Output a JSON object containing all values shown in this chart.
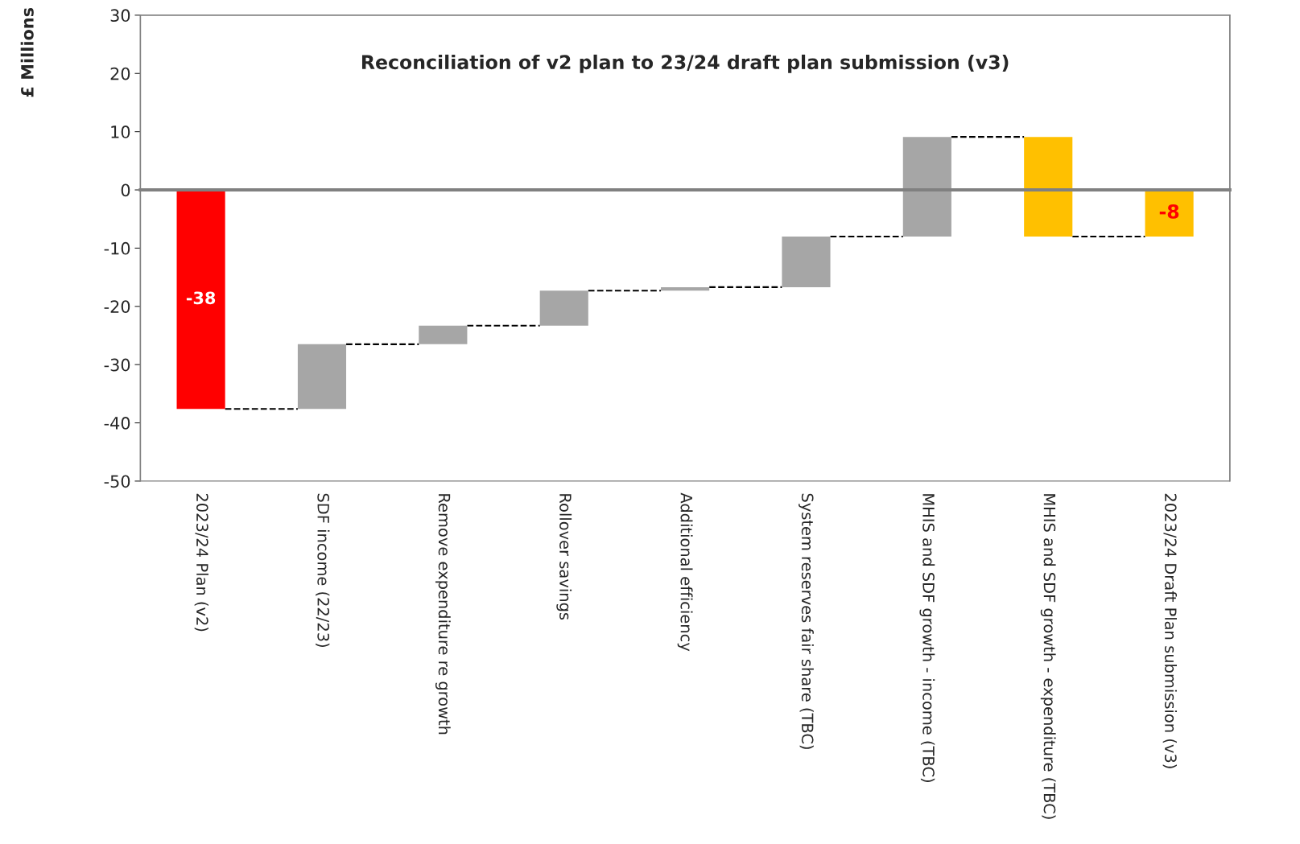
{
  "chart_data": {
    "type": "bar",
    "title": "Reconciliation of v2 plan to 23/24 draft plan submission (v3)",
    "ylabel": "£ Millions",
    "categories": [
      "2023/24 Plan (v2)",
      "SDF income (22/23)",
      "Remove expenditure re growth",
      "Rollover savings",
      "Additional efficiency",
      "System reserves fair share (TBC)",
      "MHIS and SDF growth - income (TBC)",
      "MHIS and SDF growth - expenditure (TBC)",
      "2023/24 Draft Plan submission (v3)"
    ],
    "values": [
      -37.6,
      11.1,
      3.2,
      6.0,
      0.6,
      8.7,
      17.1,
      -17.1,
      -8
    ],
    "base": [
      0,
      -37.6,
      -26.5,
      -23.3,
      -17.3,
      -16.7,
      -8,
      9.1,
      0
    ],
    "colors": [
      "#ff0000",
      "#a6a6a6",
      "#a6a6a6",
      "#a6a6a6",
      "#a6a6a6",
      "#a6a6a6",
      "#a6a6a6",
      "#ffc000",
      "#ffc000"
    ],
    "value_labels": [
      "-38",
      null,
      null,
      null,
      null,
      null,
      null,
      null,
      "-8"
    ],
    "ylim": [
      -50,
      30
    ],
    "yticks": [
      -50,
      -40,
      -30,
      -20,
      -10,
      0,
      10,
      20,
      30
    ],
    "legend": false
  }
}
